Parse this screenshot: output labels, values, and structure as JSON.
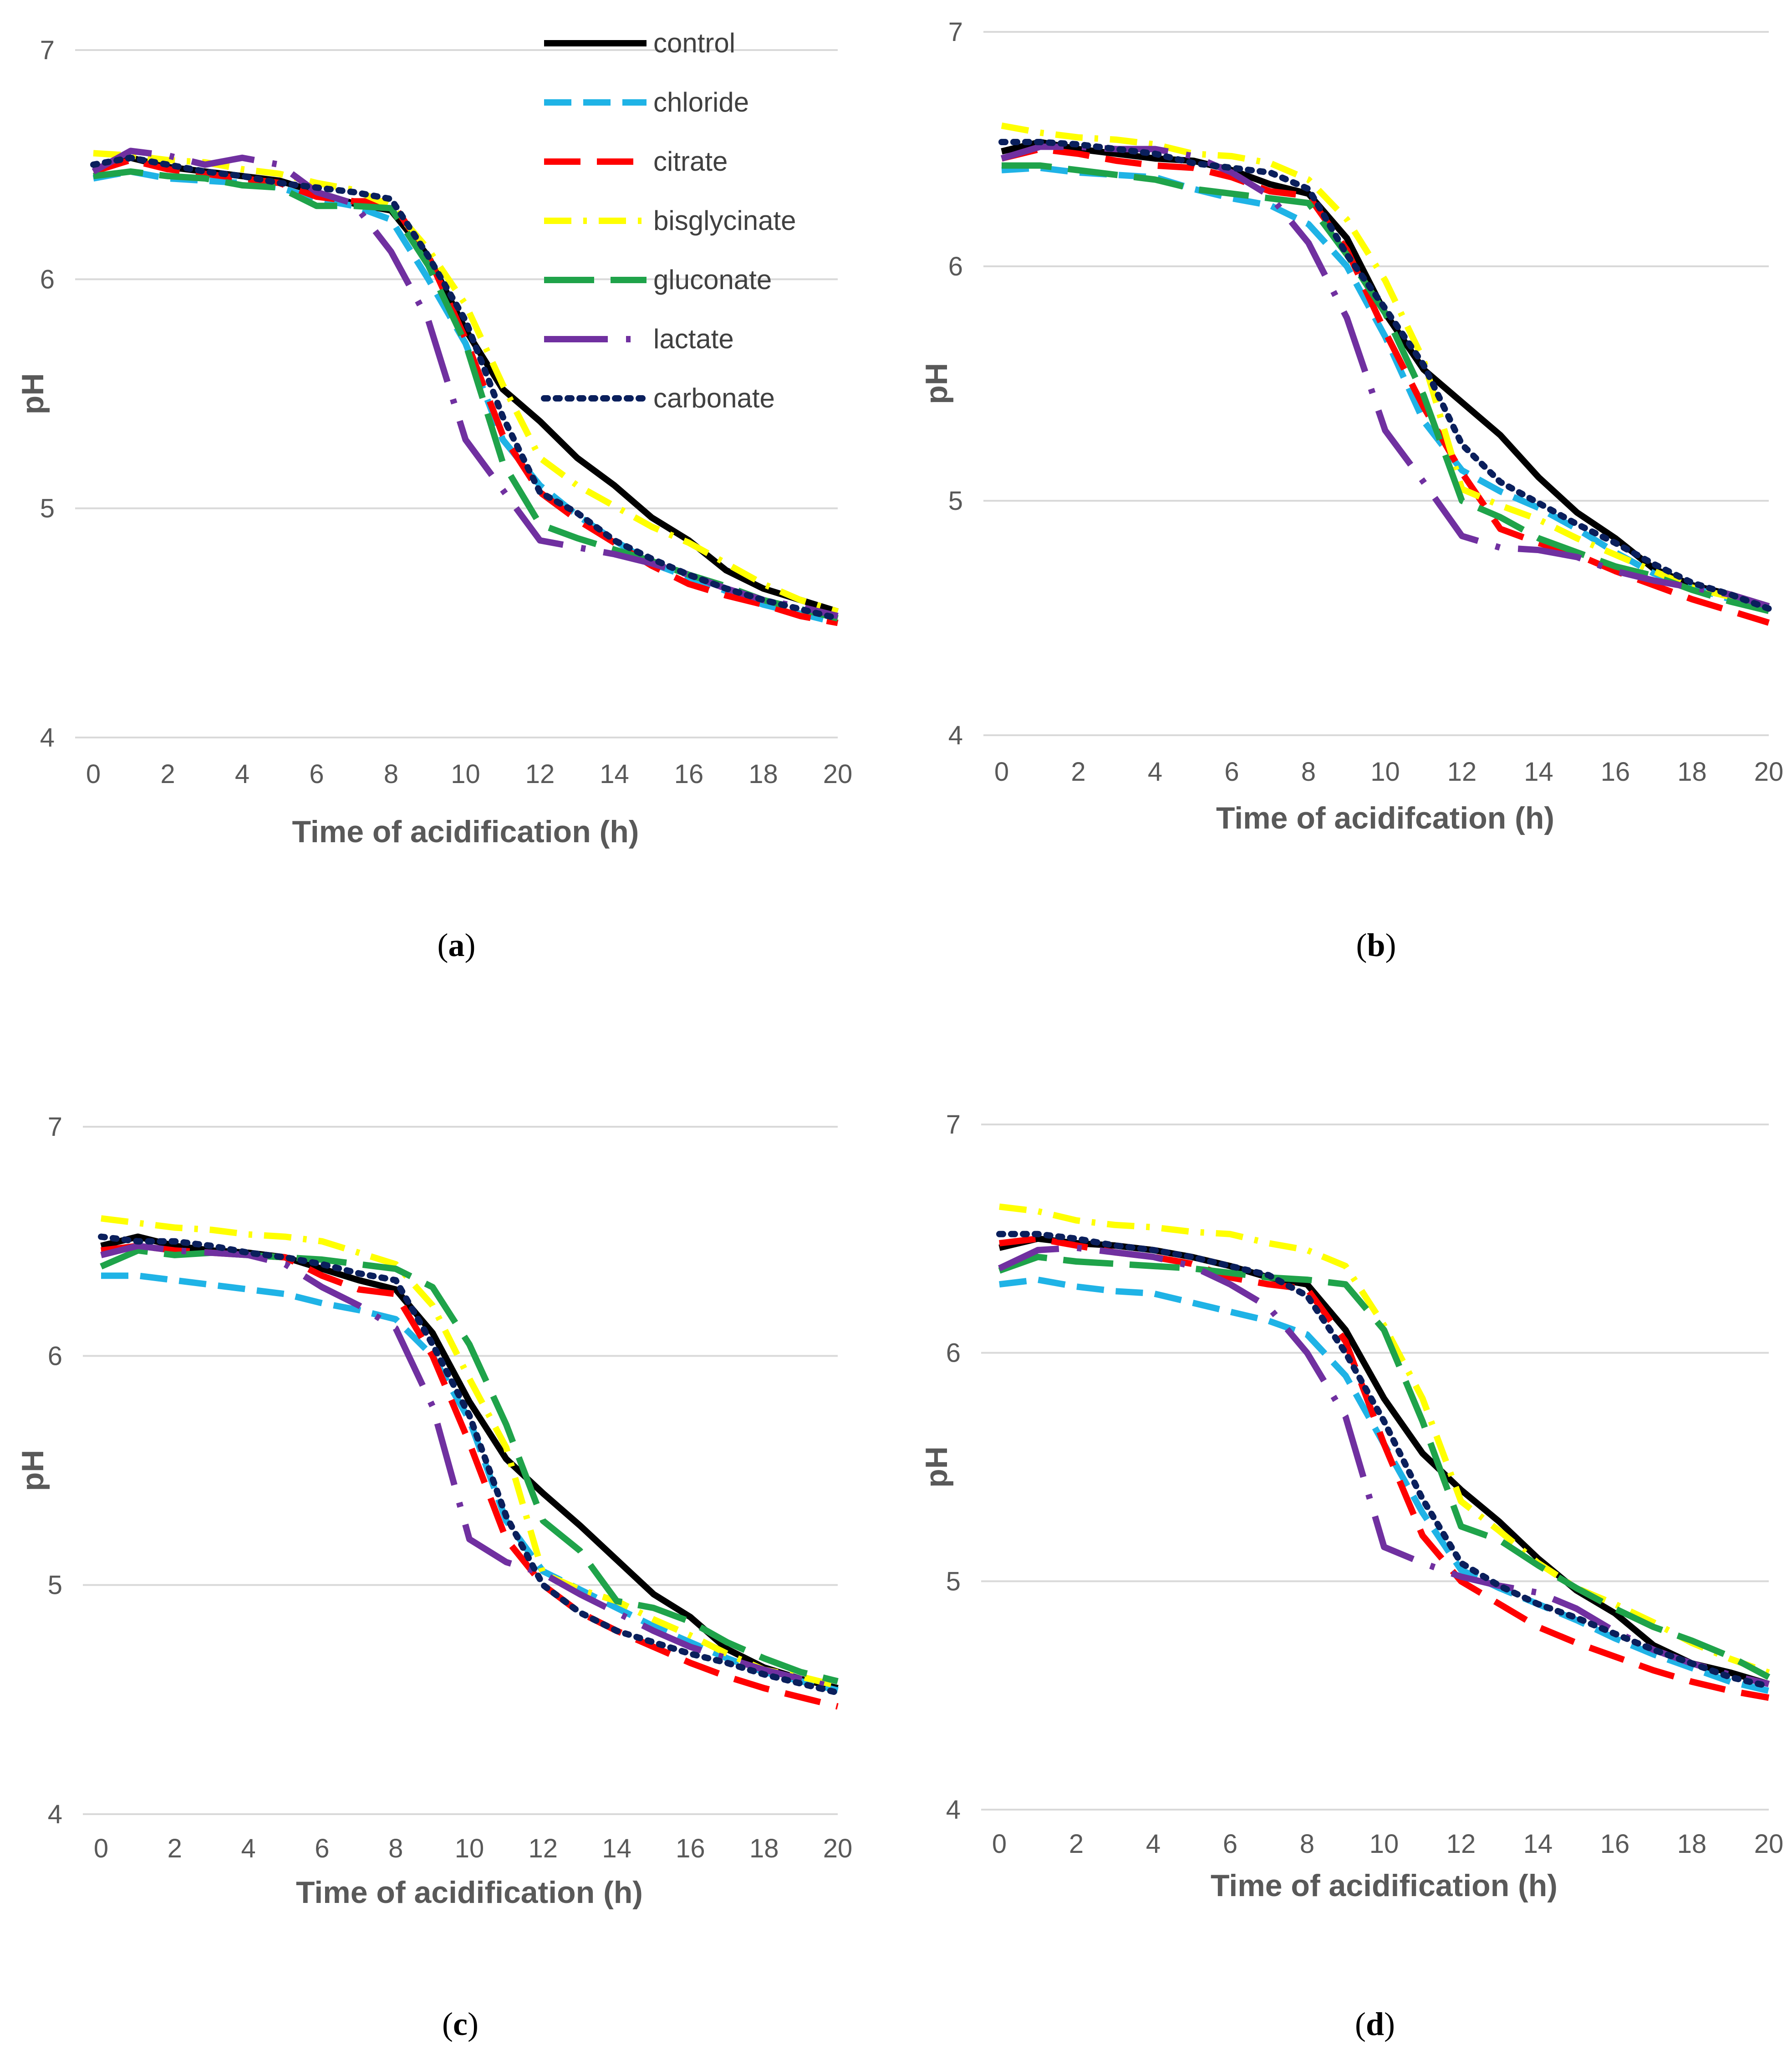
{
  "chart_data": [
    {
      "type": "line",
      "caption": "a",
      "xlabel": "Time of acidification (h)",
      "ylabel": "pH",
      "xlim": [
        0,
        20
      ],
      "ylim": [
        4,
        7
      ],
      "xticks": [
        "0",
        "2",
        "4",
        "6",
        "8",
        "10",
        "12",
        "14",
        "16",
        "18",
        "20"
      ],
      "yticks": [
        "4",
        "5",
        "6",
        "7"
      ],
      "grid": "horizontal",
      "legend": "top-right",
      "x": [
        0,
        1,
        2,
        3,
        4,
        5,
        6,
        7,
        8,
        9,
        10,
        11,
        12,
        13,
        14,
        15,
        16,
        17,
        18,
        19,
        20
      ],
      "series": [
        {
          "name": "control",
          "values": [
            6.48,
            6.53,
            6.49,
            6.47,
            6.45,
            6.43,
            6.38,
            6.33,
            6.3,
            6.1,
            5.78,
            5.52,
            5.38,
            5.22,
            5.1,
            4.96,
            4.86,
            4.73,
            4.65,
            4.6,
            4.55
          ]
        },
        {
          "name": "chloride",
          "values": [
            6.44,
            6.47,
            6.44,
            6.43,
            6.42,
            6.4,
            6.35,
            6.32,
            6.26,
            6.0,
            5.72,
            5.3,
            5.1,
            4.97,
            4.86,
            4.76,
            4.7,
            4.64,
            4.58,
            4.54,
            4.5
          ]
        },
        {
          "name": "citrate",
          "values": [
            6.47,
            6.52,
            6.48,
            6.46,
            6.44,
            6.42,
            6.36,
            6.34,
            6.34,
            6.1,
            5.74,
            5.32,
            5.07,
            4.95,
            4.85,
            4.75,
            4.67,
            4.62,
            4.58,
            4.53,
            4.5
          ]
        },
        {
          "name": "bisglycinate",
          "values": [
            6.55,
            6.54,
            6.52,
            6.51,
            6.48,
            6.46,
            6.42,
            6.39,
            6.32,
            6.13,
            5.89,
            5.54,
            5.22,
            5.1,
            5.01,
            4.92,
            4.85,
            4.76,
            4.67,
            4.6,
            4.55
          ]
        },
        {
          "name": "gluconate",
          "values": [
            6.45,
            6.47,
            6.45,
            6.44,
            6.41,
            6.4,
            6.32,
            6.32,
            6.31,
            6.06,
            5.72,
            5.2,
            4.93,
            4.87,
            4.82,
            4.77,
            4.71,
            4.66,
            4.6,
            4.56,
            4.52
          ]
        },
        {
          "name": "lactate",
          "values": [
            6.47,
            6.56,
            6.54,
            6.5,
            6.53,
            6.5,
            6.38,
            6.33,
            6.12,
            5.82,
            5.3,
            5.08,
            4.86,
            4.83,
            4.8,
            4.76,
            4.71,
            4.65,
            4.6,
            4.57,
            4.53
          ]
        },
        {
          "name": "carbonate",
          "values": [
            6.5,
            6.53,
            6.5,
            6.47,
            6.45,
            6.42,
            6.4,
            6.38,
            6.35,
            6.1,
            5.82,
            5.4,
            5.07,
            4.98,
            4.86,
            4.78,
            4.71,
            4.65,
            4.6,
            4.56,
            4.52
          ]
        }
      ]
    },
    {
      "type": "line",
      "caption": "b",
      "xlabel": "Time of acidifcation (h)",
      "ylabel": "pH",
      "xlim": [
        0,
        20
      ],
      "ylim": [
        4,
        7
      ],
      "xticks": [
        "0",
        "2",
        "4",
        "6",
        "8",
        "10",
        "12",
        "14",
        "16",
        "18",
        "20"
      ],
      "yticks": [
        "4",
        "5",
        "6",
        "7"
      ],
      "grid": "horizontal",
      "x": [
        0,
        1,
        2,
        3,
        4,
        5,
        6,
        7,
        8,
        9,
        10,
        11,
        12,
        13,
        14,
        15,
        16,
        17,
        18,
        19,
        20
      ],
      "series": [
        {
          "name": "control",
          "values": [
            6.49,
            6.53,
            6.5,
            6.48,
            6.46,
            6.45,
            6.41,
            6.35,
            6.31,
            6.12,
            5.8,
            5.56,
            5.42,
            5.28,
            5.1,
            4.95,
            4.84,
            4.71,
            4.64,
            4.6,
            4.55
          ]
        },
        {
          "name": "chloride",
          "values": [
            6.41,
            6.42,
            6.4,
            6.39,
            6.38,
            6.33,
            6.29,
            6.26,
            6.18,
            6.0,
            5.7,
            5.34,
            5.13,
            5.04,
            4.97,
            4.88,
            4.78,
            4.69,
            4.63,
            4.58,
            4.54
          ]
        },
        {
          "name": "citrate",
          "values": [
            6.46,
            6.5,
            6.48,
            6.45,
            6.43,
            6.42,
            6.38,
            6.32,
            6.3,
            6.07,
            5.72,
            5.4,
            5.12,
            4.88,
            4.82,
            4.77,
            4.7,
            4.64,
            4.58,
            4.53,
            4.48
          ]
        },
        {
          "name": "bisglycinate",
          "values": [
            6.6,
            6.57,
            6.55,
            6.54,
            6.52,
            6.48,
            6.47,
            6.44,
            6.37,
            6.2,
            5.94,
            5.6,
            5.05,
            4.98,
            4.92,
            4.84,
            4.77,
            4.7,
            4.63,
            4.59,
            4.55
          ]
        },
        {
          "name": "gluconate",
          "values": [
            6.43,
            6.43,
            6.41,
            6.39,
            6.37,
            6.33,
            6.31,
            6.29,
            6.27,
            6.05,
            5.8,
            5.45,
            5.0,
            4.93,
            4.84,
            4.78,
            4.72,
            4.68,
            4.62,
            4.57,
            4.53
          ]
        },
        {
          "name": "lactate",
          "values": [
            6.46,
            6.51,
            6.51,
            6.5,
            6.5,
            6.47,
            6.4,
            6.3,
            6.1,
            5.78,
            5.3,
            5.08,
            4.85,
            4.8,
            4.79,
            4.76,
            4.7,
            4.66,
            4.63,
            4.6,
            4.55
          ]
        },
        {
          "name": "carbonate",
          "values": [
            6.53,
            6.53,
            6.52,
            6.5,
            6.48,
            6.44,
            6.42,
            6.4,
            6.33,
            6.05,
            5.82,
            5.58,
            5.24,
            5.08,
            4.99,
            4.9,
            4.82,
            4.73,
            4.65,
            4.6,
            4.54
          ]
        }
      ]
    },
    {
      "type": "line",
      "caption": "c",
      "xlabel": "Time of acidification (h)",
      "ylabel": "pH",
      "xlim": [
        0,
        20
      ],
      "ylim": [
        4,
        7
      ],
      "xticks": [
        "0",
        "2",
        "4",
        "6",
        "8",
        "10",
        "12",
        "14",
        "16",
        "18",
        "20"
      ],
      "yticks": [
        "4",
        "5",
        "6",
        "7"
      ],
      "grid": "horizontal",
      "x": [
        0,
        1,
        2,
        3,
        4,
        5,
        6,
        7,
        8,
        9,
        10,
        11,
        12,
        13,
        14,
        15,
        16,
        17,
        18,
        19,
        20
      ],
      "series": [
        {
          "name": "control",
          "values": [
            6.48,
            6.52,
            6.48,
            6.46,
            6.45,
            6.43,
            6.38,
            6.33,
            6.29,
            6.1,
            5.8,
            5.55,
            5.4,
            5.26,
            5.11,
            4.96,
            4.86,
            4.72,
            4.64,
            4.59,
            4.55
          ]
        },
        {
          "name": "chloride",
          "values": [
            6.35,
            6.35,
            6.33,
            6.31,
            6.29,
            6.27,
            6.23,
            6.2,
            6.16,
            6.0,
            5.72,
            5.28,
            5.06,
            4.98,
            4.9,
            4.82,
            4.75,
            4.68,
            4.62,
            4.58,
            4.54
          ]
        },
        {
          "name": "citrate",
          "values": [
            6.46,
            6.48,
            6.46,
            6.45,
            6.44,
            6.43,
            6.35,
            6.29,
            6.27,
            6.0,
            5.62,
            5.2,
            5.0,
            4.88,
            4.8,
            4.73,
            4.66,
            4.6,
            4.55,
            4.51,
            4.47
          ]
        },
        {
          "name": "bisglycinate",
          "values": [
            6.6,
            6.58,
            6.56,
            6.55,
            6.53,
            6.52,
            6.5,
            6.45,
            6.4,
            6.22,
            5.9,
            5.6,
            5.05,
            4.98,
            4.93,
            4.85,
            4.78,
            4.7,
            4.63,
            4.6,
            4.56
          ]
        },
        {
          "name": "gluconate",
          "values": [
            6.39,
            6.46,
            6.44,
            6.45,
            6.44,
            6.43,
            6.42,
            6.4,
            6.38,
            6.3,
            6.05,
            5.7,
            5.28,
            5.15,
            4.93,
            4.9,
            4.84,
            4.75,
            4.68,
            4.62,
            4.58
          ]
        },
        {
          "name": "lactate",
          "values": [
            6.44,
            6.48,
            6.46,
            6.45,
            6.44,
            6.4,
            6.3,
            6.22,
            6.12,
            5.78,
            5.2,
            5.1,
            5.05,
            4.96,
            4.88,
            4.8,
            4.73,
            4.68,
            4.63,
            4.59,
            4.55
          ]
        },
        {
          "name": "carbonate",
          "values": [
            6.52,
            6.5,
            6.5,
            6.48,
            6.45,
            6.43,
            6.4,
            6.36,
            6.33,
            6.05,
            5.74,
            5.3,
            5.0,
            4.88,
            4.8,
            4.75,
            4.7,
            4.66,
            4.61,
            4.57,
            4.53
          ]
        }
      ]
    },
    {
      "type": "line",
      "caption": "d",
      "xlabel": "Time of acidification (h)",
      "ylabel": "pH",
      "xlim": [
        0,
        20
      ],
      "ylim": [
        4,
        7
      ],
      "xticks": [
        "0",
        "2",
        "4",
        "6",
        "8",
        "10",
        "12",
        "14",
        "16",
        "18",
        "20"
      ],
      "yticks": [
        "4",
        "5",
        "6",
        "7"
      ],
      "grid": "horizontal",
      "x": [
        0,
        1,
        2,
        3,
        4,
        5,
        6,
        7,
        8,
        9,
        10,
        11,
        12,
        13,
        14,
        15,
        16,
        17,
        18,
        19,
        20
      ],
      "series": [
        {
          "name": "control",
          "values": [
            6.46,
            6.5,
            6.48,
            6.47,
            6.45,
            6.42,
            6.38,
            6.33,
            6.3,
            6.1,
            5.8,
            5.56,
            5.4,
            5.26,
            5.1,
            4.96,
            4.86,
            4.72,
            4.64,
            4.6,
            4.55
          ]
        },
        {
          "name": "chloride",
          "values": [
            6.3,
            6.32,
            6.29,
            6.27,
            6.26,
            6.22,
            6.18,
            6.14,
            6.08,
            5.9,
            5.6,
            5.3,
            5.05,
            4.97,
            4.9,
            4.83,
            4.75,
            4.68,
            4.62,
            4.56,
            4.52
          ]
        },
        {
          "name": "citrate",
          "values": [
            6.48,
            6.5,
            6.47,
            6.44,
            6.42,
            6.39,
            6.33,
            6.3,
            6.28,
            6.05,
            5.6,
            5.2,
            5.0,
            4.9,
            4.8,
            4.73,
            4.67,
            4.61,
            4.56,
            4.52,
            4.49
          ]
        },
        {
          "name": "bisglycinate",
          "values": [
            6.64,
            6.62,
            6.58,
            6.56,
            6.55,
            6.53,
            6.52,
            6.48,
            6.45,
            6.38,
            6.12,
            5.8,
            5.35,
            5.22,
            5.08,
            4.97,
            4.9,
            4.82,
            4.73,
            4.66,
            4.6
          ]
        },
        {
          "name": "gluconate",
          "values": [
            6.36,
            6.42,
            6.4,
            6.39,
            6.38,
            6.37,
            6.35,
            6.33,
            6.32,
            6.3,
            6.1,
            5.7,
            5.24,
            5.18,
            5.07,
            4.97,
            4.88,
            4.8,
            4.74,
            4.67,
            4.58
          ]
        },
        {
          "name": "lactate",
          "values": [
            6.37,
            6.45,
            6.46,
            6.44,
            6.42,
            6.38,
            6.3,
            6.2,
            6.0,
            5.72,
            5.15,
            5.08,
            5.02,
            4.98,
            4.95,
            4.88,
            4.78,
            4.7,
            4.64,
            4.59,
            4.55
          ]
        },
        {
          "name": "carbonate",
          "values": [
            6.52,
            6.52,
            6.5,
            6.47,
            6.45,
            6.42,
            6.38,
            6.34,
            6.25,
            6.0,
            5.7,
            5.36,
            5.08,
            4.98,
            4.9,
            4.84,
            4.77,
            4.7,
            4.64,
            4.58,
            4.54
          ]
        }
      ]
    }
  ],
  "styles": {
    "control": {
      "color": "#000000",
      "dash": "none"
    },
    "chloride": {
      "color": "#1FB3E6",
      "dash": "60 26"
    },
    "citrate": {
      "color": "#FF0000",
      "dash": "80 36"
    },
    "bisglycinate": {
      "color": "#FFFF00",
      "dash": "60 26 8 26"
    },
    "gluconate": {
      "color": "#1FA34A",
      "dash": "110 36"
    },
    "lactate": {
      "color": "#7030A0",
      "dash": "140 40 10 40"
    },
    "carbonate": {
      "color": "#0A1F5C",
      "dash": "8 18"
    },
    "grid_color": "#D9D9D9"
  }
}
